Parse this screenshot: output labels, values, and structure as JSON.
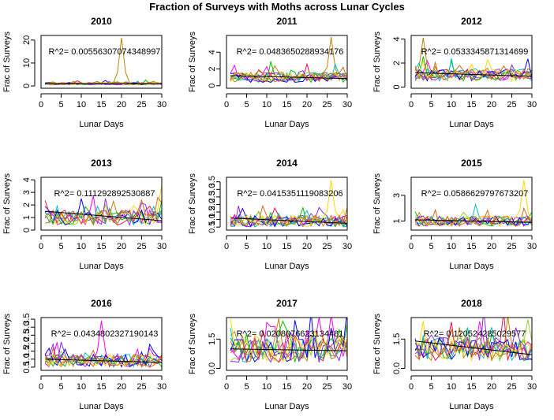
{
  "figure": {
    "title": "Fraction of Surveys with Moths across Lunar Cycles"
  },
  "line_colors": [
    "#e6194b",
    "#ff00ff",
    "#b8860b",
    "#00c000",
    "#9acd32",
    "#00bfbf",
    "#0000ff",
    "#8a2be2",
    "#ffd700",
    "#d2691e"
  ],
  "chart_data": [
    {
      "type": "line",
      "title": "2010",
      "xlabel": "Lunar Days",
      "ylabel": "Frac of Surveys",
      "annotation": "R^2= 0.00556307074348997",
      "xlim": [
        0,
        30
      ],
      "ylim": [
        -1,
        22
      ],
      "xticks": [
        "0",
        "5",
        "10",
        "15",
        "20",
        "25",
        "30"
      ],
      "yticks": [
        0,
        10,
        20
      ],
      "ytick_labels": [
        "0",
        "10",
        "20"
      ],
      "series_count": 10,
      "base": 1.0,
      "spread": 0.5,
      "spike": {
        "series": 2,
        "day": 20,
        "value": 21
      },
      "trend": [
        1.0,
        0.95
      ]
    },
    {
      "type": "line",
      "title": "2011",
      "xlabel": "Lunar Days",
      "ylabel": "Frac of Surveys",
      "annotation": "R^2= 0.0483650288934176",
      "xlim": [
        0,
        30
      ],
      "ylim": [
        -0.3,
        6
      ],
      "xticks": [
        "0",
        "5",
        "10",
        "15",
        "20",
        "25",
        "30"
      ],
      "yticks": [
        0,
        2,
        4
      ],
      "ytick_labels": [
        "0",
        "2",
        "4"
      ],
      "series_count": 10,
      "base": 1.0,
      "spread": 0.6,
      "spike": {
        "series": 2,
        "day": 26,
        "value": 5.8
      },
      "trend": [
        1.2,
        0.85
      ]
    },
    {
      "type": "line",
      "title": "2012",
      "xlabel": "Lunar Days",
      "ylabel": "Frac of Surveys",
      "annotation": "R^2= 0.0533345871314699",
      "xlim": [
        0,
        30
      ],
      "ylim": [
        -0.1,
        4.3
      ],
      "xticks": [
        "0",
        "5",
        "10",
        "15",
        "20",
        "25",
        "30"
      ],
      "yticks": [
        0,
        2,
        4
      ],
      "ytick_labels": [
        "0",
        "2",
        "4"
      ],
      "series_count": 10,
      "base": 1.0,
      "spread": 0.5,
      "spike": {
        "series": 2,
        "day": 3,
        "value": 4.1
      },
      "trend": [
        1.2,
        0.9
      ]
    },
    {
      "type": "line",
      "title": "2013",
      "xlabel": "Lunar Days",
      "ylabel": "Frac of Surveys",
      "annotation": "R^2= 0.111292892530887",
      "xlim": [
        0,
        30
      ],
      "ylim": [
        0,
        4.2
      ],
      "xticks": [
        "0",
        "5",
        "10",
        "15",
        "20",
        "25",
        "30"
      ],
      "yticks": [
        0,
        1,
        2,
        3,
        4
      ],
      "ytick_labels": [
        "0",
        "1",
        "2",
        "3",
        "4"
      ],
      "series_count": 10,
      "base": 1.0,
      "spread": 0.6,
      "spike": {
        "series": 8,
        "day": 30,
        "value": 3.6
      },
      "trend": [
        1.5,
        0.75
      ]
    },
    {
      "type": "line",
      "title": "2014",
      "xlabel": "Lunar Days",
      "ylabel": "Frac of Surveys",
      "annotation": "R^2= 0.0415351119083206",
      "xlim": [
        0,
        30
      ],
      "ylim": [
        0.3,
        3.8
      ],
      "xticks": [
        "0",
        "5",
        "10",
        "15",
        "20",
        "25",
        "30"
      ],
      "yticks": [
        0.5,
        1.0,
        1.5,
        2.0,
        2.5,
        3.0,
        3.5
      ],
      "ytick_labels": [
        "0.5",
        "1.0",
        "1.5",
        "2.0",
        "2.5",
        "3.0",
        "3.5"
      ],
      "series_count": 10,
      "base": 0.9,
      "spread": 0.4,
      "spike": {
        "series": 8,
        "day": 26,
        "value": 3.6
      },
      "trend": [
        1.1,
        0.75
      ]
    },
    {
      "type": "line",
      "title": "2015",
      "xlabel": "Lunar Days",
      "ylabel": "Frac of Surveys",
      "annotation": "R^2= 0.0586629797673207",
      "xlim": [
        0,
        30
      ],
      "ylim": [
        0.3,
        4.4
      ],
      "xticks": [
        "0",
        "5",
        "10",
        "15",
        "20",
        "25",
        "30"
      ],
      "yticks": [
        1,
        3
      ],
      "ytick_labels": [
        "1",
        "3"
      ],
      "series_count": 10,
      "base": 1.0,
      "spread": 0.4,
      "spike": {
        "series": 8,
        "day": 28,
        "value": 4.2
      },
      "trend": [
        1.1,
        0.9
      ]
    },
    {
      "type": "line",
      "title": "2016",
      "xlabel": "Lunar Days",
      "ylabel": "Frac of Surveys",
      "annotation": "R^2= 0.0434802327190143",
      "xlim": [
        0,
        30
      ],
      "ylim": [
        0.3,
        3.6
      ],
      "xticks": [
        "0",
        "5",
        "10",
        "15",
        "20",
        "25",
        "30"
      ],
      "yticks": [
        0.5,
        1.0,
        1.5,
        2.0,
        2.5,
        3.0,
        3.5
      ],
      "ytick_labels": [
        "0.5",
        "1.0",
        "1.5",
        "2.0",
        "2.5",
        "3.0",
        "3.5"
      ],
      "series_count": 10,
      "base": 0.9,
      "spread": 0.4,
      "spike": {
        "series": 1,
        "day": 15,
        "value": 3.4
      },
      "trend": [
        1.0,
        0.8
      ]
    },
    {
      "type": "line",
      "title": "2017",
      "xlabel": "Lunar Days",
      "ylabel": "Frac of Surveys",
      "annotation": "R^2= 0.0208076623134481",
      "xlim": [
        0,
        30
      ],
      "ylim": [
        -0.1,
        2.6
      ],
      "xticks": [
        "0",
        "5",
        "10",
        "15",
        "20",
        "25",
        "30"
      ],
      "yticks": [
        0.0,
        1.5
      ],
      "ytick_labels": [
        "0.0",
        "1.5"
      ],
      "series_count": 10,
      "base": 1.0,
      "spread": 0.7,
      "spike": {
        "series": 1,
        "day": 23,
        "value": 2.6
      },
      "trend": [
        1.0,
        0.9
      ]
    },
    {
      "type": "line",
      "title": "2018",
      "xlabel": "Lunar Days",
      "ylabel": "Frac of Surveys",
      "annotation": "R^2= 0.120524285029577",
      "xlim": [
        0,
        30
      ],
      "ylim": [
        -0.1,
        2.6
      ],
      "xticks": [
        "0",
        "5",
        "10",
        "15",
        "20",
        "25",
        "30"
      ],
      "yticks": [
        0.0,
        1.5
      ],
      "ytick_labels": [
        "0.0",
        "1.5"
      ],
      "series_count": 10,
      "base": 1.0,
      "spread": 0.6,
      "spike": {
        "series": 4,
        "day": 29,
        "value": 2.5
      },
      "trend": [
        1.4,
        0.7
      ]
    }
  ]
}
